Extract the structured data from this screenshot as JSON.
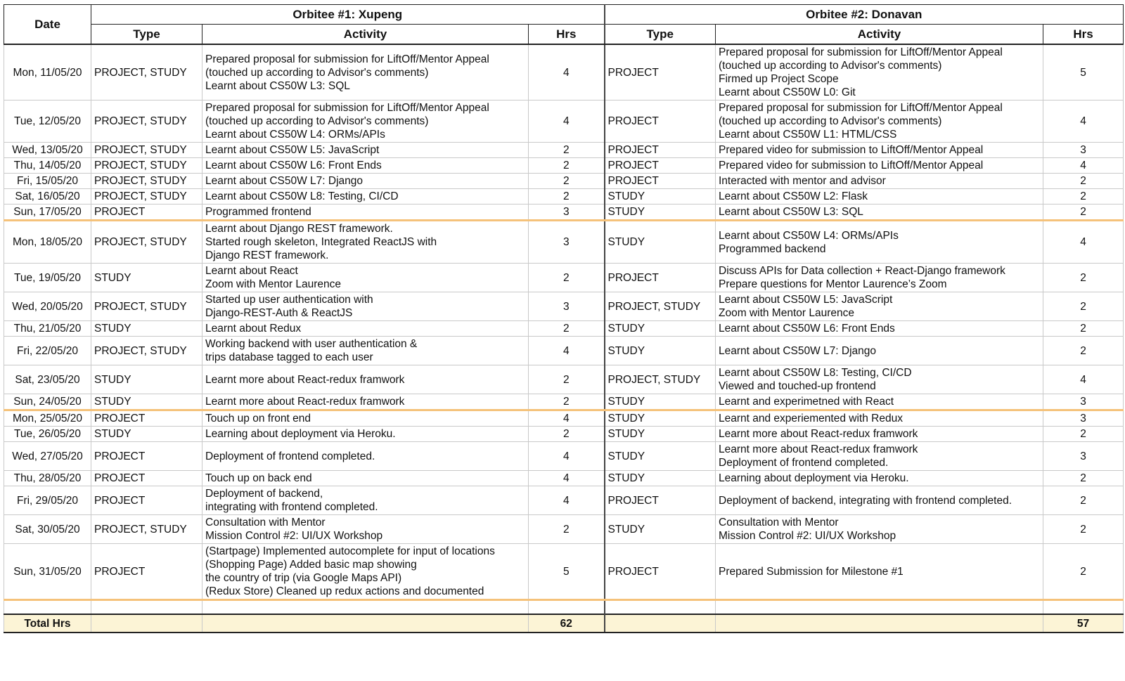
{
  "headers": {
    "date": "Date",
    "orbitee1": "Orbitee #1: Xupeng",
    "orbitee2": "Orbitee #2: Donavan",
    "type": "Type",
    "activity": "Activity",
    "hrs": "Hrs"
  },
  "rows": [
    {
      "date": "Mon, 11/05/20",
      "t1": "PROJECT, STUDY",
      "a1": [
        "Prepared proposal for submission for LiftOff/Mentor Appeal",
        "(touched up according to Advisor's comments)",
        "Learnt about CS50W L3: SQL"
      ],
      "h1": "4",
      "t2": "PROJECT",
      "a2": [
        "Prepared proposal for submission for LiftOff/Mentor Appeal",
        "(touched up according to Advisor's comments)",
        "Firmed up Project Scope",
        "Learnt about CS50W L0: Git"
      ],
      "h2": "5"
    },
    {
      "date": "Tue, 12/05/20",
      "t1": "PROJECT, STUDY",
      "a1": [
        "Prepared proposal for submission for LiftOff/Mentor Appeal",
        "(touched up according to Advisor's comments)",
        "Learnt about CS50W L4: ORMs/APIs"
      ],
      "h1": "4",
      "t2": "PROJECT",
      "a2": [
        "Prepared proposal for submission for LiftOff/Mentor Appeal",
        "(touched up according to Advisor's comments)",
        "Learnt about CS50W L1: HTML/CSS"
      ],
      "h2": "4"
    },
    {
      "date": "Wed, 13/05/20",
      "t1": "PROJECT, STUDY",
      "a1": [
        "Learnt about CS50W L5: JavaScript"
      ],
      "h1": "2",
      "t2": "PROJECT",
      "a2": [
        "Prepared video for submission to LiftOff/Mentor Appeal"
      ],
      "h2": "3"
    },
    {
      "date": "Thu, 14/05/20",
      "t1": "PROJECT, STUDY",
      "a1": [
        "Learnt about CS50W L6: Front Ends"
      ],
      "h1": "2",
      "t2": "PROJECT",
      "a2": [
        "Prepared video for submission to LiftOff/Mentor Appeal"
      ],
      "h2": "4"
    },
    {
      "date": "Fri, 15/05/20",
      "t1": "PROJECT, STUDY",
      "a1": [
        "Learnt about CS50W L7: Django"
      ],
      "h1": "2",
      "t2": "PROJECT",
      "a2": [
        "Interacted with mentor and advisor"
      ],
      "h2": "2"
    },
    {
      "date": "Sat, 16/05/20",
      "t1": "PROJECT, STUDY",
      "a1": [
        "Learnt about CS50W L8: Testing, CI/CD"
      ],
      "h1": "2",
      "t2": "STUDY",
      "a2": [
        "Learnt about CS50W L2: Flask"
      ],
      "h2": "2"
    },
    {
      "date": "Sun, 17/05/20",
      "t1": "PROJECT",
      "a1": [
        "Programmed frontend"
      ],
      "h1": "3",
      "t2": "STUDY",
      "a2": [
        "Learnt about CS50W L3: SQL"
      ],
      "h2": "2",
      "week_end": true
    },
    {
      "date": "Mon, 18/05/20",
      "t1": "PROJECT, STUDY",
      "a1": [
        "Learnt about Django REST framework.",
        "Started rough skeleton, Integrated ReactJS with",
        "Django REST framework."
      ],
      "h1": "3",
      "t2": "STUDY",
      "a2": [
        "Learnt about CS50W L4: ORMs/APIs",
        "Programmed backend"
      ],
      "h2": "4"
    },
    {
      "date": "Tue, 19/05/20",
      "t1": "STUDY",
      "a1": [
        "Learnt about React",
        "Zoom with Mentor Laurence"
      ],
      "h1": "2",
      "t2": "PROJECT",
      "a2": [
        "Discuss APIs for Data collection + React-Django framework",
        "Prepare questions for Mentor Laurence’s Zoom"
      ],
      "h2": "2"
    },
    {
      "date": "Wed, 20/05/20",
      "t1": "PROJECT, STUDY",
      "a1": [
        "Started up user authentication with",
        "Django-REST-Auth & ReactJS"
      ],
      "h1": "3",
      "t2": "PROJECT, STUDY",
      "a2": [
        "Learnt about CS50W L5: JavaScript",
        "Zoom with Mentor Laurence"
      ],
      "h2": "2"
    },
    {
      "date": "Thu, 21/05/20",
      "t1": "STUDY",
      "a1": [
        "Learnt about Redux"
      ],
      "h1": "2",
      "t2": "STUDY",
      "a2": [
        "Learnt about CS50W L6: Front Ends"
      ],
      "h2": "2"
    },
    {
      "date": "Fri, 22/05/20",
      "t1": "PROJECT, STUDY",
      "a1": [
        "Working backend with user authentication &",
        "trips database tagged to each user"
      ],
      "h1": "4",
      "t2": "STUDY",
      "a2": [
        "Learnt about CS50W L7: Django"
      ],
      "h2": "2"
    },
    {
      "date": "Sat, 23/05/20",
      "t1": "STUDY",
      "a1": [
        "Learnt more about React-redux framwork"
      ],
      "h1": "2",
      "t2": "PROJECT, STUDY",
      "a2": [
        "Learnt about CS50W L8: Testing, CI/CD",
        "Viewed and touched-up frontend"
      ],
      "h2": "4"
    },
    {
      "date": "Sun, 24/05/20",
      "t1": "STUDY",
      "a1": [
        "Learnt more about React-redux framwork"
      ],
      "h1": "2",
      "t2": "STUDY",
      "a2": [
        "Learnt and experimetned with React"
      ],
      "h2": "3",
      "week_end": true
    },
    {
      "date": "Mon, 25/05/20",
      "t1": "PROJECT",
      "a1": [
        "Touch up on front end"
      ],
      "h1": "4",
      "t2": "STUDY",
      "a2": [
        "Learnt and experiemented with Redux"
      ],
      "h2": "3"
    },
    {
      "date": "Tue, 26/05/20",
      "t1": "STUDY",
      "a1": [
        "Learning about deployment via Heroku."
      ],
      "h1": "2",
      "t2": "STUDY",
      "a2": [
        "Learnt more about React-redux framwork"
      ],
      "h2": "2"
    },
    {
      "date": "Wed, 27/05/20",
      "t1": "PROJECT",
      "a1": [
        "Deployment of frontend completed."
      ],
      "h1": "4",
      "t2": "STUDY",
      "a2": [
        "Learnt more about React-redux framwork",
        "Deployment of frontend completed."
      ],
      "h2": "3"
    },
    {
      "date": "Thu, 28/05/20",
      "t1": "PROJECT",
      "a1": [
        "Touch up on back end"
      ],
      "h1": "4",
      "t2": "STUDY",
      "a2": [
        "Learning about deployment via Heroku."
      ],
      "h2": "2"
    },
    {
      "date": "Fri, 29/05/20",
      "t1": "PROJECT",
      "a1": [
        "Deployment of backend,",
        "integrating with frontend completed."
      ],
      "h1": "4",
      "t2": "PROJECT",
      "a2": [
        "Deployment of backend, integrating with frontend completed."
      ],
      "h2": "2"
    },
    {
      "date": "Sat, 30/05/20",
      "t1": "PROJECT, STUDY",
      "a1": [
        "Consultation with Mentor",
        "Mission Control #2: UI/UX Workshop"
      ],
      "h1": "2",
      "t2": "STUDY",
      "a2": [
        "Consultation with Mentor",
        "Mission Control #2: UI/UX Workshop"
      ],
      "h2": "2"
    },
    {
      "date": "Sun, 31/05/20",
      "t1": "PROJECT",
      "a1": [
        "(Startpage) Implemented autocomplete for input of locations",
        "(Shopping Page) Added basic map showing",
        "the country of trip (via Google Maps API)",
        "(Redux Store) Cleaned up redux actions and documented"
      ],
      "h1": "5",
      "t2": "PROJECT",
      "a2": [
        "Prepared Submission for Milestone #1"
      ],
      "h2": "2",
      "week_end": true
    }
  ],
  "total": {
    "label": "Total Hrs",
    "h1": "62",
    "h2": "57"
  }
}
